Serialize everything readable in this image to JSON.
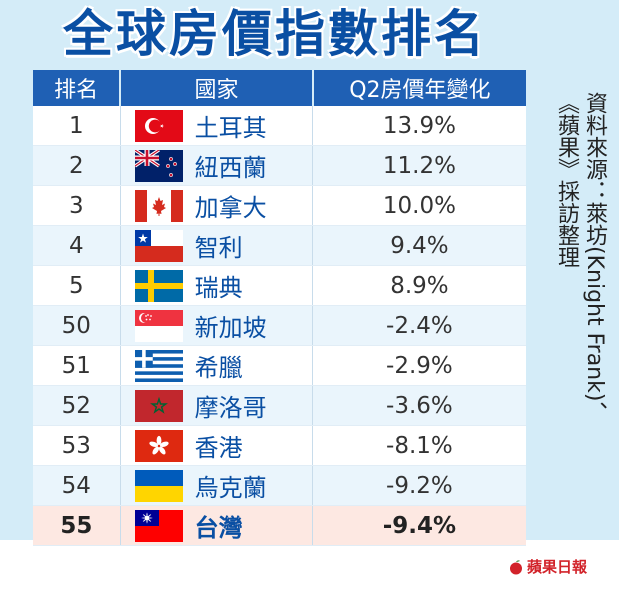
{
  "title": "全球房價指數排名",
  "table": {
    "headers": {
      "rank": "排名",
      "country": "國家",
      "change": "Q2房價年變化"
    },
    "rows": [
      {
        "rank": "1",
        "country": "土耳其",
        "change": "13.9%",
        "flag_icon": "turkey-flag"
      },
      {
        "rank": "2",
        "country": "紐西蘭",
        "change": "11.2%",
        "flag_icon": "new-zealand-flag"
      },
      {
        "rank": "3",
        "country": "加拿大",
        "change": "10.0%",
        "flag_icon": "canada-flag"
      },
      {
        "rank": "4",
        "country": "智利",
        "change": "9.4%",
        "flag_icon": "chile-flag"
      },
      {
        "rank": "5",
        "country": "瑞典",
        "change": "8.9%",
        "flag_icon": "sweden-flag"
      },
      {
        "rank": "50",
        "country": "新加坡",
        "change": "-2.4%",
        "flag_icon": "singapore-flag"
      },
      {
        "rank": "51",
        "country": "希臘",
        "change": "-2.9%",
        "flag_icon": "greece-flag"
      },
      {
        "rank": "52",
        "country": "摩洛哥",
        "change": "-3.6%",
        "flag_icon": "morocco-flag"
      },
      {
        "rank": "53",
        "country": "香港",
        "change": "-8.1%",
        "flag_icon": "hong-kong-flag"
      },
      {
        "rank": "54",
        "country": "烏克蘭",
        "change": "-9.2%",
        "flag_icon": "ukraine-flag"
      },
      {
        "rank": "55",
        "country": "台灣",
        "change": "-9.4%",
        "flag_icon": "taiwan-flag",
        "highlighted": true
      }
    ]
  },
  "source": "資料來源：萊坊(Knight Frank)、\n《蘋果》採訪整理",
  "logo": {
    "text": "蘋果日報",
    "icon": "apple-icon"
  },
  "colors": {
    "background": "#d4ecf8",
    "title": "#0a4fa3",
    "header_bg": "#1f60b4",
    "country_text": "#0a4fa3",
    "highlight_row": "#fde8e2",
    "logo_red": "#d2232a"
  }
}
